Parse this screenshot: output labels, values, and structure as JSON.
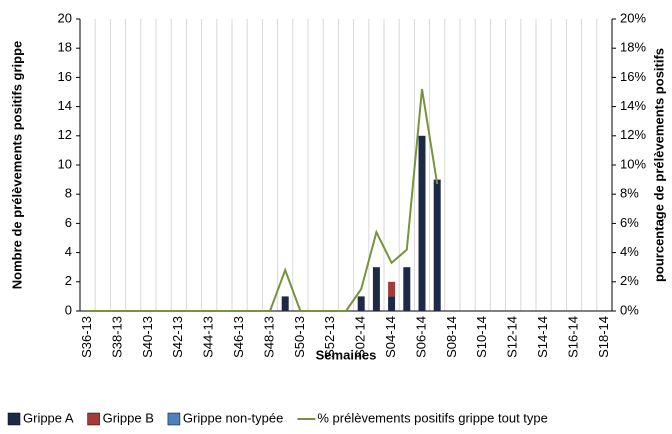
{
  "chart_data": {
    "type": "bar-line",
    "categories": [
      "S36-13",
      null,
      "S38-13",
      null,
      "S40-13",
      null,
      "S42-13",
      null,
      "S44-13",
      null,
      "S46-13",
      null,
      "S48-13",
      null,
      "S50-13",
      null,
      "S52-13",
      null,
      "S02-14",
      null,
      "S04-14",
      null,
      "S06-14",
      null,
      "S08-14",
      null,
      "S10-14",
      null,
      "S12-14",
      null,
      "S14-14",
      null,
      "S16-14",
      null,
      "S18-14"
    ],
    "series": [
      {
        "name": "Grippe A",
        "color": "#1c2a48",
        "values": [
          0,
          0,
          0,
          0,
          0,
          0,
          0,
          0,
          0,
          0,
          0,
          0,
          0,
          1,
          0,
          0,
          0,
          0,
          1,
          3,
          1,
          3,
          12,
          9,
          0,
          0,
          0,
          0,
          0,
          0,
          0,
          0,
          0,
          0,
          0
        ]
      },
      {
        "name": "Grippe B",
        "color": "#a33b3b",
        "values": [
          0,
          0,
          0,
          0,
          0,
          0,
          0,
          0,
          0,
          0,
          0,
          0,
          0,
          0,
          0,
          0,
          0,
          0,
          0,
          0,
          1,
          0,
          0,
          0,
          0,
          0,
          0,
          0,
          0,
          0,
          0,
          0,
          0,
          0,
          0
        ]
      },
      {
        "name": "Grippe non-typée",
        "color": "#4f81bd",
        "values": [
          0,
          0,
          0,
          0,
          0,
          0,
          0,
          0,
          0,
          0,
          0,
          0,
          0,
          0,
          0,
          0,
          0,
          0,
          0,
          0,
          0,
          0,
          0,
          0,
          0,
          0,
          0,
          0,
          0,
          0,
          0,
          0,
          0,
          0,
          0
        ]
      },
      {
        "name": "% prélèvements positifs grippe tout type",
        "color": "#77933c",
        "axis": "y2",
        "line": true,
        "values": [
          0,
          0,
          0,
          0,
          0,
          0,
          0,
          0,
          0,
          0,
          0,
          0,
          0,
          2.8,
          0,
          0,
          0,
          0,
          1.5,
          5.4,
          3.3,
          4.2,
          15.2,
          8.7,
          null,
          null,
          null,
          null,
          null,
          null,
          null,
          null,
          null,
          null,
          null
        ]
      }
    ],
    "ylim": [
      0,
      20
    ],
    "yticks": [
      0,
      2,
      4,
      6,
      8,
      10,
      12,
      14,
      16,
      18,
      20
    ],
    "y2lim": [
      0,
      20
    ],
    "y2ticks": [
      {
        "value": 0,
        "label": "0%"
      },
      {
        "value": 2,
        "label": "2%"
      },
      {
        "value": 4,
        "label": "4%"
      },
      {
        "value": 6,
        "label": "6%"
      },
      {
        "value": 8,
        "label": "8%"
      },
      {
        "value": 10,
        "label": "10%"
      },
      {
        "value": 12,
        "label": "12%"
      },
      {
        "value": 14,
        "label": "14%"
      },
      {
        "value": 16,
        "label": "16%"
      },
      {
        "value": 18,
        "label": "18%"
      },
      {
        "value": 20,
        "label": "20%"
      }
    ],
    "ylabel": "Nombre de prélèvements positifs grippe",
    "y2label": "pourcentage de prélèvements positifs",
    "xlabel": "Semaines",
    "grid": true
  }
}
